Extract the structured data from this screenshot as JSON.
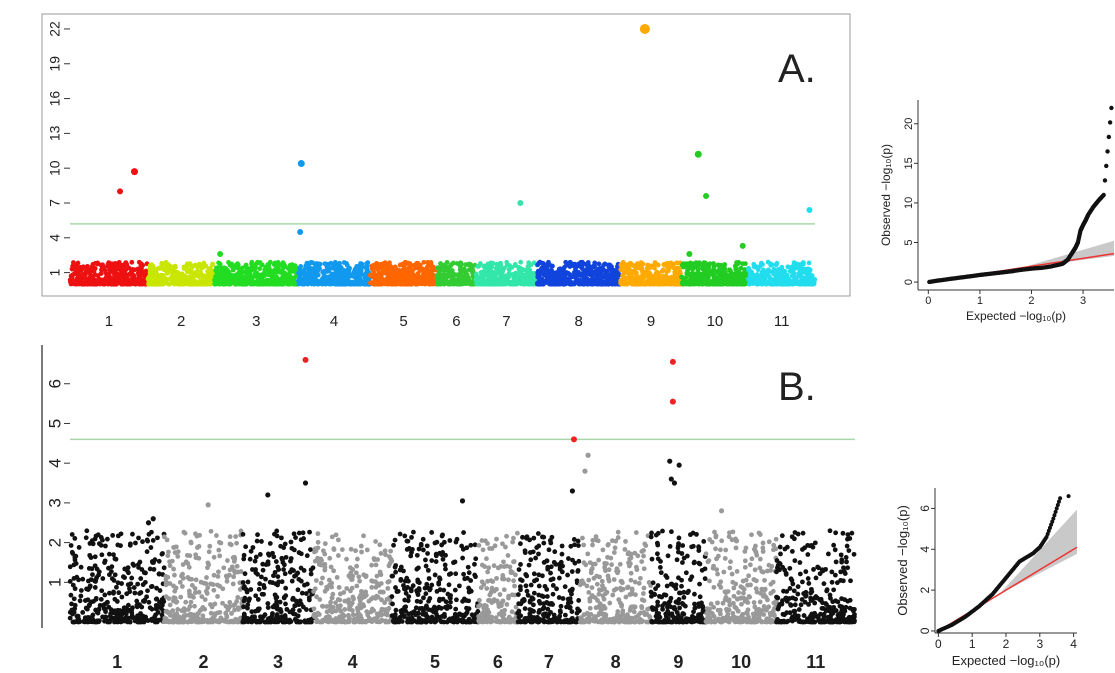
{
  "panels": {
    "a_label": "A.",
    "b_label": "B."
  },
  "chart_data": [
    {
      "type": "scatter",
      "panel": "A",
      "xlabel": "",
      "ylabel": "",
      "ylim": [
        -0.5,
        22.6
      ],
      "y_ticks": [
        "1",
        "4",
        "7",
        "10",
        "13",
        "16",
        "19",
        "22"
      ],
      "x_categories": [
        "1",
        "2",
        "3",
        "4",
        "5",
        "6",
        "7",
        "8",
        "9",
        "10",
        "11"
      ],
      "threshold": 5.2,
      "threshold_color": "#a8d8a8",
      "chromosomes": [
        {
          "name": "1",
          "color": "#ee1111",
          "x0": 0.0,
          "x1": 7.0
        },
        {
          "name": "2",
          "color": "#c8e600",
          "x0": 7.0,
          "x1": 13.0
        },
        {
          "name": "3",
          "color": "#22dd22",
          "x0": 13.0,
          "x1": 20.5
        },
        {
          "name": "4",
          "color": "#1199ee",
          "x0": 20.5,
          "x1": 27.0
        },
        {
          "name": "5",
          "color": "#ff6600",
          "x0": 27.0,
          "x1": 33.0
        },
        {
          "name": "6",
          "color": "#33cc33",
          "x0": 33.0,
          "x1": 36.5
        },
        {
          "name": "7",
          "color": "#33e6aa",
          "x0": 36.5,
          "x1": 42.0
        },
        {
          "name": "8",
          "color": "#1144dd",
          "x0": 42.0,
          "x1": 49.5
        },
        {
          "name": "9",
          "color": "#ffaa00",
          "x0": 49.5,
          "x1": 55.0
        },
        {
          "name": "10",
          "color": "#22cc22",
          "x0": 55.0,
          "x1": 61.0
        },
        {
          "name": "11",
          "color": "#22ddee",
          "x0": 61.0,
          "x1": 67.0
        }
      ],
      "significant_points": [
        {
          "chr": "1",
          "x": 4.5,
          "y": 8.0,
          "color": "#ee1111",
          "size": 3
        },
        {
          "chr": "1",
          "x": 5.8,
          "y": 9.7,
          "color": "#ee1111",
          "size": 3.5
        },
        {
          "chr": "3",
          "x": 13.5,
          "y": 2.6,
          "color": "#22dd22",
          "size": 3
        },
        {
          "chr": "4",
          "x": 20.8,
          "y": 10.4,
          "color": "#1199ee",
          "size": 3.5
        },
        {
          "chr": "4",
          "x": 20.7,
          "y": 4.5,
          "color": "#1199ee",
          "size": 3
        },
        {
          "chr": "7",
          "x": 40.5,
          "y": 7.0,
          "color": "#33e6aa",
          "size": 3
        },
        {
          "chr": "9",
          "x": 51.7,
          "y": 22.0,
          "color": "#ffaa00",
          "size": 5
        },
        {
          "chr": "10",
          "x": 56.5,
          "y": 11.2,
          "color": "#22cc22",
          "size": 3.5
        },
        {
          "chr": "10",
          "x": 57.2,
          "y": 7.6,
          "color": "#22cc22",
          "size": 3
        },
        {
          "chr": "10",
          "x": 55.7,
          "y": 2.6,
          "color": "#22cc22",
          "size": 3
        },
        {
          "chr": "10",
          "x": 60.5,
          "y": 3.3,
          "color": "#22cc22",
          "size": 3
        },
        {
          "chr": "11",
          "x": 66.5,
          "y": 6.4,
          "color": "#22ddee",
          "size": 3
        }
      ]
    },
    {
      "type": "scatter",
      "panel": "A-QQ",
      "xlabel": "Expected  −log₁₀(p)",
      "ylabel": "Observed  −log₁₀(p)",
      "xlim": [
        -0.2,
        3.6
      ],
      "ylim": [
        -1.0,
        23.0
      ],
      "x_ticks": [
        "0",
        "1",
        "2",
        "3"
      ],
      "y_ticks": [
        "0",
        "5",
        "10",
        "15",
        "20"
      ],
      "points": [
        [
          0.02,
          0.02
        ],
        [
          0.2,
          0.2
        ],
        [
          0.4,
          0.38
        ],
        [
          0.6,
          0.55
        ],
        [
          0.8,
          0.72
        ],
        [
          1.0,
          0.9
        ],
        [
          1.2,
          1.05
        ],
        [
          1.4,
          1.2
        ],
        [
          1.6,
          1.35
        ],
        [
          1.8,
          1.55
        ],
        [
          2.0,
          1.7
        ],
        [
          2.2,
          1.8
        ],
        [
          2.4,
          2.0
        ],
        [
          2.6,
          2.3
        ],
        [
          2.7,
          2.8
        ],
        [
          2.8,
          3.8
        ],
        [
          2.85,
          4.3
        ],
        [
          2.9,
          5.0
        ],
        [
          2.95,
          6.5
        ],
        [
          3.0,
          7.2
        ],
        [
          3.05,
          7.8
        ],
        [
          3.1,
          8.5
        ],
        [
          3.2,
          9.5
        ],
        [
          3.3,
          10.3
        ],
        [
          3.4,
          11.0
        ],
        [
          3.55,
          22.0
        ]
      ],
      "reference_line_color": "#ee3333",
      "band_color": "#bbbbbb"
    },
    {
      "type": "scatter",
      "panel": "B",
      "xlabel": "",
      "ylabel": "",
      "ylim": [
        -0.1,
        6.9
      ],
      "y_ticks": [
        "1",
        "2",
        "3",
        "4",
        "5",
        "6"
      ],
      "x_categories": [
        "1",
        "2",
        "3",
        "4",
        "5",
        "6",
        "7",
        "8",
        "9",
        "10",
        "11"
      ],
      "threshold": 4.6,
      "threshold_color": "#a8d8a8",
      "chromosomes": [
        {
          "name": "1",
          "color": "#111111",
          "x0": 0.0,
          "x1": 6.0
        },
        {
          "name": "2",
          "color": "#999999",
          "x0": 6.0,
          "x1": 11.0
        },
        {
          "name": "3",
          "color": "#111111",
          "x0": 11.0,
          "x1": 15.5
        },
        {
          "name": "4",
          "color": "#999999",
          "x0": 15.5,
          "x1": 20.5
        },
        {
          "name": "5",
          "color": "#111111",
          "x0": 20.5,
          "x1": 26.0
        },
        {
          "name": "6",
          "color": "#999999",
          "x0": 26.0,
          "x1": 28.5
        },
        {
          "name": "7",
          "color": "#111111",
          "x0": 28.5,
          "x1": 32.5
        },
        {
          "name": "8",
          "color": "#999999",
          "x0": 32.5,
          "x1": 37.0
        },
        {
          "name": "9",
          "color": "#111111",
          "x0": 37.0,
          "x1": 40.5
        },
        {
          "name": "10",
          "color": "#999999",
          "x0": 40.5,
          "x1": 45.0
        },
        {
          "name": "11",
          "color": "#111111",
          "x0": 45.0,
          "x1": 50.0
        }
      ],
      "significant_points": [
        {
          "chr": "3",
          "x": 15.0,
          "y": 6.6,
          "color": "#ee2222",
          "size": 3
        },
        {
          "chr": "7",
          "x": 32.1,
          "y": 4.6,
          "color": "#ee2222",
          "size": 3
        },
        {
          "chr": "9",
          "x": 38.4,
          "y": 6.55,
          "color": "#ee2222",
          "size": 3
        },
        {
          "chr": "9",
          "x": 38.4,
          "y": 5.55,
          "color": "#ee2222",
          "size": 3
        },
        {
          "chr": "3",
          "x": 12.6,
          "y": 3.2,
          "color": "#111111",
          "size": 2.6
        },
        {
          "chr": "3",
          "x": 15.0,
          "y": 3.5,
          "color": "#111111",
          "size": 2.6
        },
        {
          "chr": "5",
          "x": 25.0,
          "y": 3.05,
          "color": "#111111",
          "size": 2.6
        },
        {
          "chr": "7",
          "x": 32.0,
          "y": 3.3,
          "color": "#111111",
          "size": 2.6
        },
        {
          "chr": "8",
          "x": 33.0,
          "y": 4.2,
          "color": "#999999",
          "size": 2.6
        },
        {
          "chr": "8",
          "x": 32.8,
          "y": 3.8,
          "color": "#999999",
          "size": 2.6
        },
        {
          "chr": "9",
          "x": 38.2,
          "y": 4.05,
          "color": "#111111",
          "size": 2.6
        },
        {
          "chr": "9",
          "x": 38.8,
          "y": 3.95,
          "color": "#111111",
          "size": 2.6
        },
        {
          "chr": "9",
          "x": 38.3,
          "y": 3.6,
          "color": "#111111",
          "size": 2.6
        },
        {
          "chr": "9",
          "x": 38.5,
          "y": 3.5,
          "color": "#111111",
          "size": 2.6
        },
        {
          "chr": "1",
          "x": 5.3,
          "y": 2.6,
          "color": "#111111",
          "size": 2.6
        },
        {
          "chr": "1",
          "x": 5.0,
          "y": 2.5,
          "color": "#111111",
          "size": 2.6
        },
        {
          "chr": "2",
          "x": 8.8,
          "y": 2.95,
          "color": "#999999",
          "size": 2.6
        },
        {
          "chr": "10",
          "x": 41.5,
          "y": 2.8,
          "color": "#999999",
          "size": 2.6
        }
      ]
    },
    {
      "type": "scatter",
      "panel": "B-QQ",
      "xlabel": "Expected  −log₁₀(p)",
      "ylabel": "Observed  −log₁₀(p)",
      "xlim": [
        -0.1,
        4.1
      ],
      "ylim": [
        -0.1,
        7.0
      ],
      "x_ticks": [
        "0",
        "1",
        "2",
        "3",
        "4"
      ],
      "y_ticks": [
        "0",
        "2",
        "4",
        "6"
      ],
      "points": [
        [
          0.0,
          0.0
        ],
        [
          0.2,
          0.15
        ],
        [
          0.4,
          0.3
        ],
        [
          0.6,
          0.5
        ],
        [
          0.8,
          0.7
        ],
        [
          1.0,
          0.95
        ],
        [
          1.2,
          1.2
        ],
        [
          1.4,
          1.5
        ],
        [
          1.6,
          1.8
        ],
        [
          1.8,
          2.2
        ],
        [
          2.0,
          2.6
        ],
        [
          2.2,
          3.0
        ],
        [
          2.4,
          3.4
        ],
        [
          2.6,
          3.6
        ],
        [
          2.8,
          3.8
        ],
        [
          3.0,
          4.1
        ],
        [
          3.2,
          4.6
        ],
        [
          3.4,
          5.5
        ],
        [
          3.6,
          6.5
        ],
        [
          3.85,
          6.6
        ]
      ],
      "reference_line_color": "#ee3333",
      "band_color": "#bbbbbb"
    }
  ]
}
